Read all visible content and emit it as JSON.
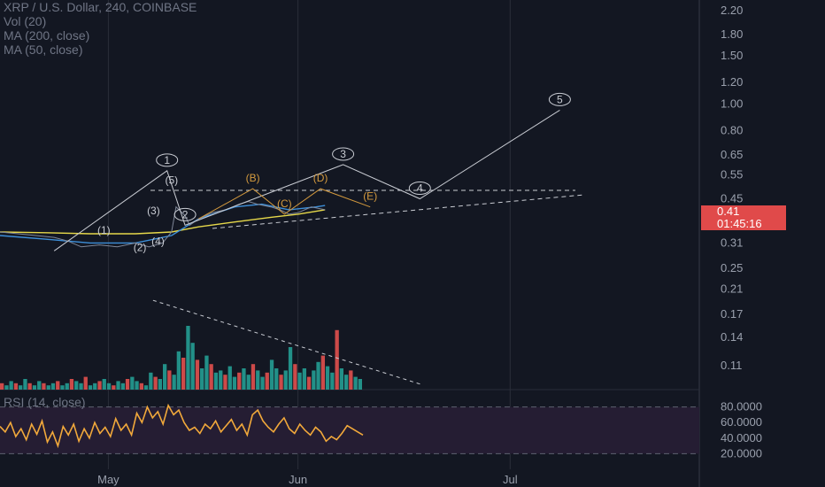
{
  "legend": {
    "symbol": "XRP / U.S. Dollar, 240, COINBASE",
    "vol": "Vol (20)",
    "ma200": "MA (200, close)",
    "ma50": "MA (50, close)",
    "rsi": "RSI (14, close)"
  },
  "price_tags": {
    "last_price": "0.41",
    "countdown": "01:45:16"
  },
  "colors": {
    "background": "#131722",
    "ma200": "#e6d84a",
    "ma50": "#3d8fd9",
    "wave_white": "#c9ccd3",
    "wave_orange": "#d49a3e",
    "rsi_line": "#f2a93b",
    "vol_up": "#26a69a",
    "vol_down": "#ef5350",
    "price_tag": "#e04a4a"
  },
  "chart_data": {
    "type": "line",
    "scale": "log",
    "price_axis_ticks": [
      "2.20",
      "1.80",
      "1.50",
      "1.20",
      "1.00",
      "0.80",
      "0.65",
      "0.55",
      "0.45",
      "0.38",
      "0.31",
      "0.25",
      "0.21",
      "0.17",
      "0.14",
      "0.11"
    ],
    "time_axis_ticks": [
      "May",
      "Jun",
      "Jul"
    ],
    "rsi_axis_ticks": [
      "80.0000",
      "60.0000",
      "40.0000",
      "20.0000"
    ],
    "ylim": [
      0.09,
      2.3
    ],
    "price_series": [
      {
        "d": 0,
        "p": 0.34
      },
      {
        "d": 4,
        "p": 0.335
      },
      {
        "d": 8,
        "p": 0.33
      },
      {
        "d": 12,
        "p": 0.325
      },
      {
        "d": 15,
        "p": 0.315
      },
      {
        "d": 18,
        "p": 0.3
      },
      {
        "d": 22,
        "p": 0.305
      },
      {
        "d": 26,
        "p": 0.3
      },
      {
        "d": 30,
        "p": 0.31
      },
      {
        "d": 33,
        "p": 0.3
      },
      {
        "d": 36,
        "p": 0.31
      },
      {
        "d": 38,
        "p": 0.34
      },
      {
        "d": 39,
        "p": 0.42
      },
      {
        "d": 41,
        "p": 0.39
      },
      {
        "d": 42,
        "p": 0.36
      },
      {
        "d": 44,
        "p": 0.38
      },
      {
        "d": 47,
        "p": 0.4
      },
      {
        "d": 50,
        "p": 0.41
      },
      {
        "d": 53,
        "p": 0.43
      },
      {
        "d": 55,
        "p": 0.44
      },
      {
        "d": 57,
        "p": 0.43
      },
      {
        "d": 60,
        "p": 0.42
      },
      {
        "d": 62,
        "p": 0.41
      },
      {
        "d": 64,
        "p": 0.395
      },
      {
        "d": 66,
        "p": 0.4
      },
      {
        "d": 69,
        "p": 0.42
      },
      {
        "d": 72,
        "p": 0.41
      }
    ],
    "ma200": [
      {
        "d": 0,
        "p": 0.34
      },
      {
        "d": 10,
        "p": 0.338
      },
      {
        "d": 20,
        "p": 0.335
      },
      {
        "d": 30,
        "p": 0.335
      },
      {
        "d": 38,
        "p": 0.34
      },
      {
        "d": 44,
        "p": 0.355
      },
      {
        "d": 52,
        "p": 0.37
      },
      {
        "d": 60,
        "p": 0.385
      },
      {
        "d": 66,
        "p": 0.395
      },
      {
        "d": 72,
        "p": 0.41
      }
    ],
    "ma50": [
      {
        "d": 0,
        "p": 0.33
      },
      {
        "d": 10,
        "p": 0.32
      },
      {
        "d": 20,
        "p": 0.31
      },
      {
        "d": 30,
        "p": 0.31
      },
      {
        "d": 38,
        "p": 0.33
      },
      {
        "d": 44,
        "p": 0.38
      },
      {
        "d": 52,
        "p": 0.42
      },
      {
        "d": 58,
        "p": 0.43
      },
      {
        "d": 64,
        "p": 0.41
      },
      {
        "d": 70,
        "p": 0.42
      },
      {
        "d": 72,
        "p": 0.425
      }
    ],
    "wave_white": [
      {
        "label": "1",
        "d": 37,
        "p": 0.57
      },
      {
        "label": "2",
        "d": 41,
        "p": 0.36
      },
      {
        "label": "3",
        "d": 76,
        "p": 0.6
      },
      {
        "label": "4",
        "d": 93,
        "p": 0.45
      },
      {
        "label": "5",
        "d": 124,
        "p": 0.95
      }
    ],
    "wave_white_start": {
      "d": 12,
      "p": 0.29
    },
    "wave_orange": [
      {
        "label": "(B)",
        "d": 56,
        "p": 0.49
      },
      {
        "label": "(C)",
        "d": 63,
        "p": 0.395
      },
      {
        "label": "(D)",
        "d": 71,
        "p": 0.49
      },
      {
        "label": "(E)",
        "d": 82,
        "p": 0.42
      }
    ],
    "wave_sub": [
      {
        "label": "(1)",
        "d": 23,
        "p": 0.335
      },
      {
        "label": "(2)",
        "d": 31,
        "p": 0.29
      },
      {
        "label": "(3)",
        "d": 34,
        "p": 0.395
      },
      {
        "label": "(4)",
        "d": 35,
        "p": 0.305
      },
      {
        "label": "(5)",
        "d": 38,
        "p": 0.51
      }
    ],
    "volume": [
      3,
      2,
      4,
      3,
      2,
      5,
      3,
      2,
      4,
      3,
      2,
      3,
      4,
      2,
      3,
      5,
      4,
      3,
      6,
      2,
      3,
      4,
      5,
      3,
      2,
      4,
      3,
      5,
      6,
      4,
      3,
      2,
      8,
      6,
      5,
      12,
      9,
      7,
      18,
      15,
      30,
      22,
      14,
      10,
      16,
      12,
      8,
      9,
      7,
      11,
      6,
      8,
      10,
      7,
      12,
      9,
      6,
      8,
      14,
      10,
      7,
      9,
      20,
      12,
      8,
      10,
      6,
      9,
      13,
      16,
      11,
      8,
      28,
      10,
      7,
      9,
      6,
      5
    ],
    "volume_trend": [
      {
        "d": 29,
        "v": 42
      },
      {
        "d": 80,
        "v": 0.5
      }
    ],
    "rsi": [
      55,
      48,
      60,
      42,
      52,
      38,
      58,
      45,
      62,
      35,
      48,
      30,
      55,
      44,
      58,
      36,
      52,
      40,
      60,
      46,
      54,
      42,
      65,
      50,
      58,
      44,
      72,
      60,
      80,
      66,
      74,
      58,
      82,
      70,
      76,
      60,
      50,
      54,
      46,
      58,
      52,
      62,
      48,
      56,
      64,
      50,
      58,
      44,
      70,
      76,
      62,
      54,
      48,
      58,
      66,
      52,
      46,
      58,
      50,
      44,
      54,
      48,
      36,
      42,
      38,
      46,
      56,
      52,
      48,
      44
    ],
    "rsi_range": [
      0,
      100
    ]
  }
}
